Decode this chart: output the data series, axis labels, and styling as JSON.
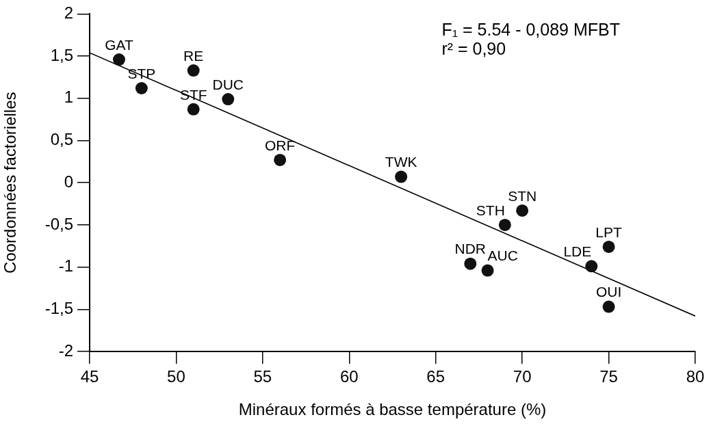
{
  "chart_data": {
    "type": "scatter",
    "xlabel": "Minéraux formés à basse température (%)",
    "ylabel": "Coordonnées factorielles",
    "annotations": [
      "F₁ = 5.54 - 0,089 MFBT",
      "r² = 0,90",
      {
        "text": "GAT",
        "x": 46.7,
        "y": 1.46
      },
      {
        "text": "STP",
        "x": 48,
        "y": 1.12
      },
      {
        "text": "RE",
        "x": 51,
        "y": 1.33
      },
      {
        "text": "STF",
        "x": 51,
        "y": 0.87
      },
      {
        "text": "DUC",
        "x": 53,
        "y": 0.99
      },
      {
        "text": "ORF",
        "x": 56,
        "y": 0.27
      },
      {
        "text": "TWK",
        "x": 63,
        "y": 0.07
      },
      {
        "text": "NDR",
        "x": 67,
        "y": -0.96
      },
      {
        "text": "AUC",
        "x": 68,
        "y": -1.04
      },
      {
        "text": "STN",
        "x": 70,
        "y": -0.33
      },
      {
        "text": "STH",
        "x": 69,
        "y": -0.5
      },
      {
        "text": "LPT",
        "x": 75,
        "y": -0.76
      },
      {
        "text": "LDE",
        "x": 74,
        "y": -0.99
      },
      {
        "text": "OUI",
        "x": 75,
        "y": -1.47
      }
    ],
    "series": [
      {
        "type": "scatter",
        "color": "#111111",
        "marker": "circle",
        "x": [
          46.7,
          48,
          51,
          51,
          53,
          56,
          63,
          67,
          68,
          69,
          70,
          74,
          75,
          75
        ],
        "values": [
          1.46,
          1.12,
          1.33,
          0.87,
          0.99,
          0.27,
          0.07,
          -0.96,
          -1.04,
          -0.5,
          -0.33,
          -0.99,
          -0.76,
          -1.47
        ]
      },
      {
        "type": "line",
        "color": "#000000",
        "marker": "none",
        "line_style": "solid",
        "x": [
          45,
          80
        ],
        "values": [
          1.54,
          -1.58
        ]
      }
    ],
    "xlim": [
      45,
      80
    ],
    "xticks": [
      45,
      50,
      55,
      60,
      65,
      70,
      75,
      80
    ],
    "ylim": [
      -2,
      2
    ],
    "yticks": [
      -2,
      {
        "value": -1.5,
        "label": "-1,5"
      },
      -1,
      {
        "value": -0.5,
        "label": "-0,5"
      },
      0,
      {
        "value": 0.5,
        "label": "0,5"
      },
      1,
      {
        "value": 1.5,
        "label": "1,5"
      },
      2
    ],
    "grid": false,
    "legend": false
  }
}
